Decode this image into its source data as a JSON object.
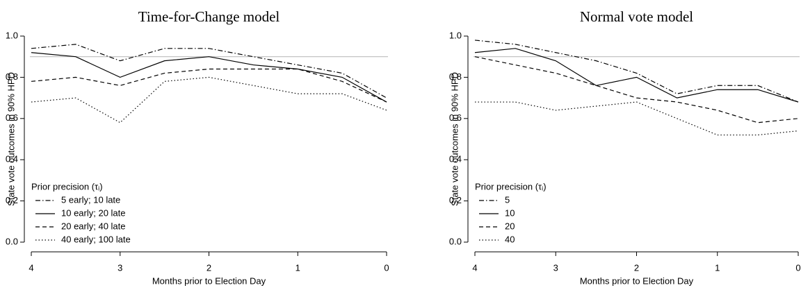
{
  "chart_data": [
    {
      "type": "line",
      "title": "Time-for-Change model",
      "x_label": "Months prior to Election Day",
      "y_label": "State vote outcomes in 90% HPD",
      "x": [
        4,
        3.5,
        3,
        2.5,
        2,
        1.5,
        1,
        0.5,
        0
      ],
      "xlim": [
        4,
        0
      ],
      "xticks": [
        4,
        3,
        2,
        1,
        0
      ],
      "ylim": [
        0,
        1
      ],
      "yticks": [
        {
          "value": 0,
          "label": "0.0"
        },
        0.2,
        0.4,
        0.6,
        0.8,
        {
          "value": 1,
          "label": "1.0"
        }
      ],
      "reference_line": 0.9,
      "legend_title": "Prior precision (τᵢ)",
      "legend_position": "lower-left",
      "series": [
        {
          "name": "5 early; 10 late",
          "color": "#000000",
          "dash": "dashdot",
          "values": [
            0.94,
            0.96,
            0.88,
            0.94,
            0.94,
            0.9,
            0.86,
            0.82,
            0.7
          ]
        },
        {
          "name": "10 early; 20 late",
          "color": "#000000",
          "dash": "solid",
          "values": [
            0.92,
            0.9,
            0.8,
            0.88,
            0.9,
            0.86,
            0.84,
            0.8,
            0.68
          ]
        },
        {
          "name": "20 early; 40 late",
          "color": "#000000",
          "dash": "dashed",
          "values": [
            0.78,
            0.8,
            0.76,
            0.82,
            0.84,
            0.84,
            0.84,
            0.78,
            0.68
          ]
        },
        {
          "name": "40 early; 100 late",
          "color": "#000000",
          "dash": "dotted",
          "values": [
            0.68,
            0.7,
            0.58,
            0.78,
            0.8,
            0.76,
            0.72,
            0.72,
            0.64
          ]
        }
      ]
    },
    {
      "type": "line",
      "title": "Normal vote model",
      "x_label": "Months prior to Election Day",
      "y_label": "State vote outcomes in 90% HPD",
      "x": [
        4,
        3.5,
        3,
        2.5,
        2,
        1.5,
        1,
        0.5,
        0
      ],
      "xlim": [
        4,
        0
      ],
      "xticks": [
        4,
        3,
        2,
        1,
        0
      ],
      "ylim": [
        0,
        1
      ],
      "yticks": [
        {
          "value": 0,
          "label": "0.0"
        },
        0.2,
        0.4,
        0.6,
        0.8,
        {
          "value": 1,
          "label": "1.0"
        }
      ],
      "reference_line": 0.9,
      "legend_title": "Prior precision (τᵢ)",
      "legend_position": "lower-left",
      "series": [
        {
          "name": "5",
          "color": "#000000",
          "dash": "dashdot",
          "values": [
            0.98,
            0.96,
            0.92,
            0.88,
            0.82,
            0.72,
            0.76,
            0.76,
            0.68
          ]
        },
        {
          "name": "10",
          "color": "#000000",
          "dash": "solid",
          "values": [
            0.92,
            0.94,
            0.88,
            0.76,
            0.8,
            0.7,
            0.74,
            0.74,
            0.68
          ]
        },
        {
          "name": "20",
          "color": "#000000",
          "dash": "dashed",
          "values": [
            0.9,
            0.86,
            0.82,
            0.76,
            0.7,
            0.68,
            0.64,
            0.58,
            0.6
          ]
        },
        {
          "name": "40",
          "color": "#000000",
          "dash": "dotted",
          "values": [
            0.68,
            0.68,
            0.64,
            0.66,
            0.68,
            0.6,
            0.52,
            0.52,
            0.54
          ]
        }
      ]
    }
  ]
}
